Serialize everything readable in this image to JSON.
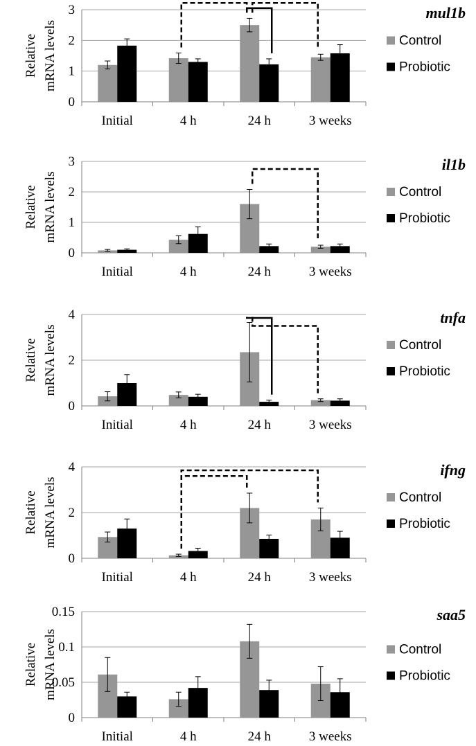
{
  "figure": {
    "ylabel_line1": "Relative",
    "ylabel_line2": "mRNA levels",
    "legend": [
      "Control",
      "Probiotic"
    ],
    "colors": {
      "control": "#969696",
      "probiotic": "#000000",
      "grid": "#a6a6a6"
    }
  },
  "chart_data": [
    {
      "type": "bar",
      "title": "mul1b",
      "categories": [
        "Initial",
        "4 h",
        "24 h",
        "3 weeks"
      ],
      "ylim": [
        0,
        3
      ],
      "yticks": [
        "0",
        "1",
        "2",
        "3"
      ],
      "ytick_values": [
        0,
        1,
        2,
        3
      ],
      "series": [
        {
          "name": "Control",
          "values": [
            1.2,
            1.42,
            2.5,
            1.45
          ],
          "errors": [
            0.13,
            0.17,
            0.22,
            0.1
          ]
        },
        {
          "name": "Probiotic",
          "values": [
            1.83,
            1.3,
            1.22,
            1.58
          ],
          "errors": [
            0.22,
            0.1,
            0.18,
            0.28
          ]
        }
      ],
      "annotations": [
        {
          "style": "dashed",
          "from": [
            1,
            0
          ],
          "to": [
            2,
            0
          ],
          "level": 3.22
        },
        {
          "style": "dashed",
          "from": [
            2,
            0
          ],
          "to": [
            3,
            0
          ],
          "level": 3.22
        },
        {
          "style": "solid",
          "from": [
            2,
            0
          ],
          "to": [
            2,
            1
          ],
          "level": 3.05
        }
      ]
    },
    {
      "type": "bar",
      "title": "il1b",
      "categories": [
        "Initial",
        "4 h",
        "24 h",
        "3 weeks"
      ],
      "ylim": [
        0,
        3
      ],
      "yticks": [
        "0",
        "1",
        "2",
        "3"
      ],
      "ytick_values": [
        0,
        1,
        2,
        3
      ],
      "series": [
        {
          "name": "Control",
          "values": [
            0.08,
            0.43,
            1.6,
            0.2
          ],
          "errors": [
            0.03,
            0.13,
            0.48,
            0.05
          ]
        },
        {
          "name": "Probiotic",
          "values": [
            0.1,
            0.62,
            0.22,
            0.22
          ],
          "errors": [
            0.03,
            0.23,
            0.07,
            0.07
          ]
        }
      ],
      "annotations": [
        {
          "style": "dashed",
          "from": [
            2,
            0
          ],
          "to": [
            3,
            0
          ],
          "level": 2.75
        }
      ]
    },
    {
      "type": "bar",
      "title": "tnfa",
      "categories": [
        "Initial",
        "4 h",
        "24 h",
        "3 weeks"
      ],
      "ylim": [
        0,
        4
      ],
      "yticks": [
        "0",
        "2",
        "4"
      ],
      "ytick_values": [
        0,
        2,
        4
      ],
      "series": [
        {
          "name": "Control",
          "values": [
            0.42,
            0.48,
            2.35,
            0.25
          ],
          "errors": [
            0.2,
            0.13,
            1.3,
            0.06
          ]
        },
        {
          "name": "Probiotic",
          "values": [
            1.0,
            0.4,
            0.18,
            0.23
          ],
          "errors": [
            0.37,
            0.11,
            0.07,
            0.08
          ]
        }
      ],
      "annotations": [
        {
          "style": "solid",
          "from": [
            2,
            0
          ],
          "to": [
            2,
            1
          ],
          "level": 3.85
        },
        {
          "style": "dashed",
          "from": [
            2,
            0
          ],
          "to": [
            3,
            0
          ],
          "level": 3.5
        }
      ]
    },
    {
      "type": "bar",
      "title": "ifng",
      "categories": [
        "Initial",
        "4 h",
        "24 h",
        "3 weeks"
      ],
      "ylim": [
        0,
        4
      ],
      "yticks": [
        "0",
        "2",
        "4"
      ],
      "ytick_values": [
        0,
        2,
        4
      ],
      "series": [
        {
          "name": "Control",
          "values": [
            0.93,
            0.13,
            2.2,
            1.7
          ],
          "errors": [
            0.22,
            0.05,
            0.65,
            0.5
          ]
        },
        {
          "name": "Probiotic",
          "values": [
            1.3,
            0.32,
            0.85,
            0.9
          ],
          "errors": [
            0.42,
            0.12,
            0.17,
            0.28
          ]
        }
      ],
      "annotations": [
        {
          "style": "dashed",
          "from": [
            1,
            0
          ],
          "to": [
            2,
            0
          ],
          "level": 3.6
        },
        {
          "style": "dashed",
          "from": [
            1,
            0
          ],
          "to": [
            3,
            0
          ],
          "level": 3.85
        }
      ]
    },
    {
      "type": "bar",
      "title": "saa5",
      "categories": [
        "Initial",
        "4 h",
        "24 h",
        "3 weeks"
      ],
      "ylim": [
        0,
        0.15
      ],
      "yticks": [
        "0",
        "0.05",
        "0.1",
        "0.15"
      ],
      "ytick_values": [
        0,
        0.05,
        0.1,
        0.15
      ],
      "series": [
        {
          "name": "Control",
          "values": [
            0.061,
            0.026,
            0.108,
            0.048
          ],
          "errors": [
            0.024,
            0.01,
            0.024,
            0.024
          ]
        },
        {
          "name": "Probiotic",
          "values": [
            0.03,
            0.042,
            0.039,
            0.036
          ],
          "errors": [
            0.006,
            0.016,
            0.014,
            0.019
          ]
        }
      ],
      "annotations": []
    }
  ]
}
